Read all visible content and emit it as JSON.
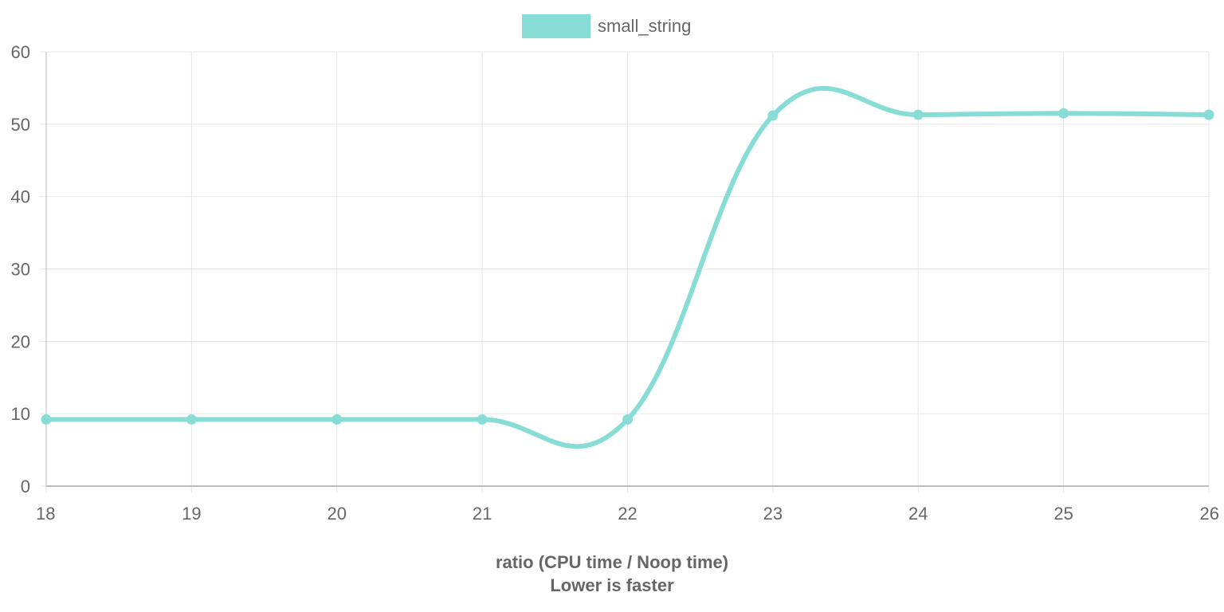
{
  "chart_data": {
    "type": "line",
    "x": [
      18,
      19,
      20,
      21,
      22,
      23,
      24,
      25,
      26
    ],
    "series": [
      {
        "name": "small_string",
        "values": [
          9.2,
          9.2,
          9.2,
          9.2,
          9.2,
          51.2,
          51.3,
          51.5,
          51.3
        ],
        "color": "#88dcd6"
      }
    ],
    "xlabel": "ratio (CPU time / Noop time)",
    "xlabel2": "Lower is faster",
    "ylabel": "",
    "xlim": [
      18,
      26
    ],
    "ylim": [
      0,
      60
    ],
    "yticks": [
      0,
      10,
      20,
      30,
      40,
      50,
      60
    ],
    "xticks": [
      "18",
      "19",
      "20",
      "21",
      "22",
      "23",
      "24",
      "25",
      "26"
    ],
    "grid": true,
    "legend": "top-center",
    "curve": "smooth"
  }
}
